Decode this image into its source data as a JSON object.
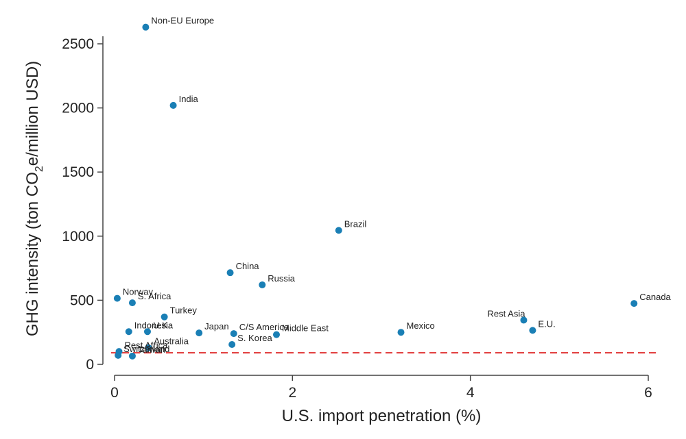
{
  "chart_data": {
    "type": "scatter",
    "title": "",
    "xlabel": "U.S. import penetration (%)",
    "ylabel_parts": [
      "GHG intensity (ton CO",
      "2",
      "e/million USD)"
    ],
    "xlim": [
      -0.1,
      6.05
    ],
    "ylim": [
      -20,
      2720
    ],
    "xticks": [
      0,
      2,
      4,
      6
    ],
    "yticks": [
      0,
      500,
      1000,
      1500,
      2000,
      2500
    ],
    "xtick_labels": [
      "0",
      "2",
      "4",
      "6"
    ],
    "ytick_labels": [
      "0",
      "500",
      "1000",
      "1500",
      "2000",
      "2500"
    ],
    "reference_line_y": 90,
    "colors": {
      "point": "#1a7fb5",
      "reference_line": "#e03030",
      "axis": "#444444"
    },
    "points": [
      {
        "label": "Non-EU Europe",
        "x": 0.35,
        "y": 2630
      },
      {
        "label": "India",
        "x": 0.66,
        "y": 2020
      },
      {
        "label": "Brazil",
        "x": 2.52,
        "y": 1045
      },
      {
        "label": "China",
        "x": 1.3,
        "y": 715
      },
      {
        "label": "Russia",
        "x": 1.66,
        "y": 620
      },
      {
        "label": "Norway",
        "x": 0.03,
        "y": 515
      },
      {
        "label": "S. Africa",
        "x": 0.2,
        "y": 480
      },
      {
        "label": "Turkey",
        "x": 0.56,
        "y": 370
      },
      {
        "label": "Canada",
        "x": 5.84,
        "y": 475
      },
      {
        "label": "Rest Asia",
        "x": 4.6,
        "y": 345
      },
      {
        "label": "E.U.",
        "x": 4.7,
        "y": 265
      },
      {
        "label": "Indonesia",
        "x": 0.16,
        "y": 255
      },
      {
        "label": "U.K.",
        "x": 0.37,
        "y": 255
      },
      {
        "label": "C/S America",
        "x": 1.34,
        "y": 240
      },
      {
        "label": "Japan",
        "x": 0.95,
        "y": 245
      },
      {
        "label": "Middle East",
        "x": 1.82,
        "y": 232
      },
      {
        "label": "Mexico",
        "x": 3.22,
        "y": 250
      },
      {
        "label": "S. Korea",
        "x": 1.32,
        "y": 155
      },
      {
        "label": "Australia",
        "x": 0.38,
        "y": 130
      },
      {
        "label": "Rest Africa",
        "x": 0.05,
        "y": 100
      },
      {
        "label": "Taiwan",
        "x": 0.2,
        "y": 65
      },
      {
        "label": "Switzerland",
        "x": 0.04,
        "y": 70
      }
    ]
  }
}
